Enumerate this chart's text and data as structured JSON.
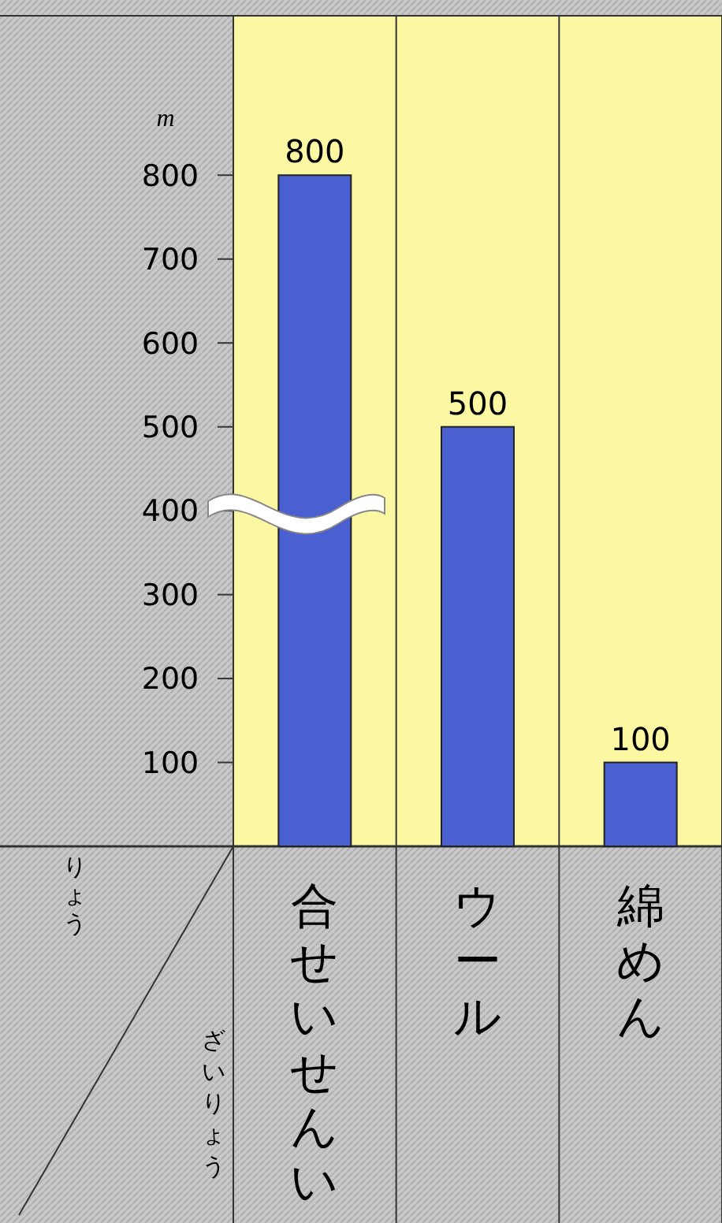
{
  "chart_data": {
    "type": "bar",
    "ylabel": "m",
    "xlabel": "ざいりょう",
    "annotations": [
      "りょう"
    ],
    "categories": [
      "合せいせんい",
      "ウール",
      "綿めん"
    ],
    "values": [
      800,
      500,
      100
    ],
    "color": "#4a5fd0",
    "data_labels": true,
    "ylim": [
      0,
      990
    ],
    "yticks": [
      100,
      200,
      300,
      400,
      500,
      600,
      700,
      800
    ],
    "grid": false
  }
}
